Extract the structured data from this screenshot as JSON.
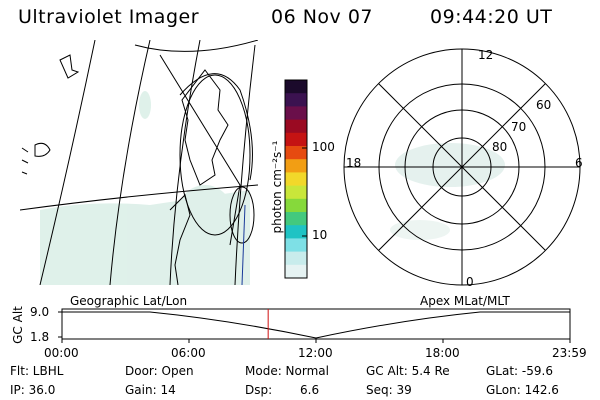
{
  "header": {
    "instrument": "Ultraviolet Imager",
    "date": "06 Nov 07",
    "time": "09:44:20 UT"
  },
  "colorbar": {
    "unit_label": "photon cm⁻²s⁻¹",
    "ticks": [
      "100",
      "10"
    ],
    "colors": [
      "#1b0a2b",
      "#3b1250",
      "#6a0f4a",
      "#9a0a22",
      "#c51313",
      "#e64b10",
      "#f29e14",
      "#f2d82a",
      "#c9e63a",
      "#86d93b",
      "#43c97e",
      "#1fc3c4",
      "#7ee0e6",
      "#c8ecec",
      "#e6f3f3"
    ]
  },
  "geo_panel": {
    "label": "Geographic Lat/Lon"
  },
  "polar_panel": {
    "label": "Apex MLat/MLT",
    "mlt_labels": {
      "top": "12",
      "bottom": "0",
      "left": "18",
      "right": "6"
    },
    "lat_labels": [
      "60",
      "70",
      "80"
    ]
  },
  "gc_alt_plot": {
    "ylabel": "GC Alt",
    "yticks": [
      "9.0",
      "1.8"
    ],
    "xticks": [
      "00:00",
      "06:00",
      "12:00",
      "18:00",
      "23:59"
    ],
    "current_time_marker_hours": 9.74
  },
  "info": {
    "flt": "Flt: LBHL",
    "ip": "IP: 36.0",
    "door": "Door: Open",
    "gain": "Gain: 14",
    "mode": "Mode: Normal",
    "dsp_label": "Dsp:",
    "dsp_value": "6.6",
    "gc_alt": "GC Alt: 5.4 Re",
    "seq": "Seq: 39",
    "glat": "GLat: -59.6",
    "glon": "GLon: 142.6"
  }
}
